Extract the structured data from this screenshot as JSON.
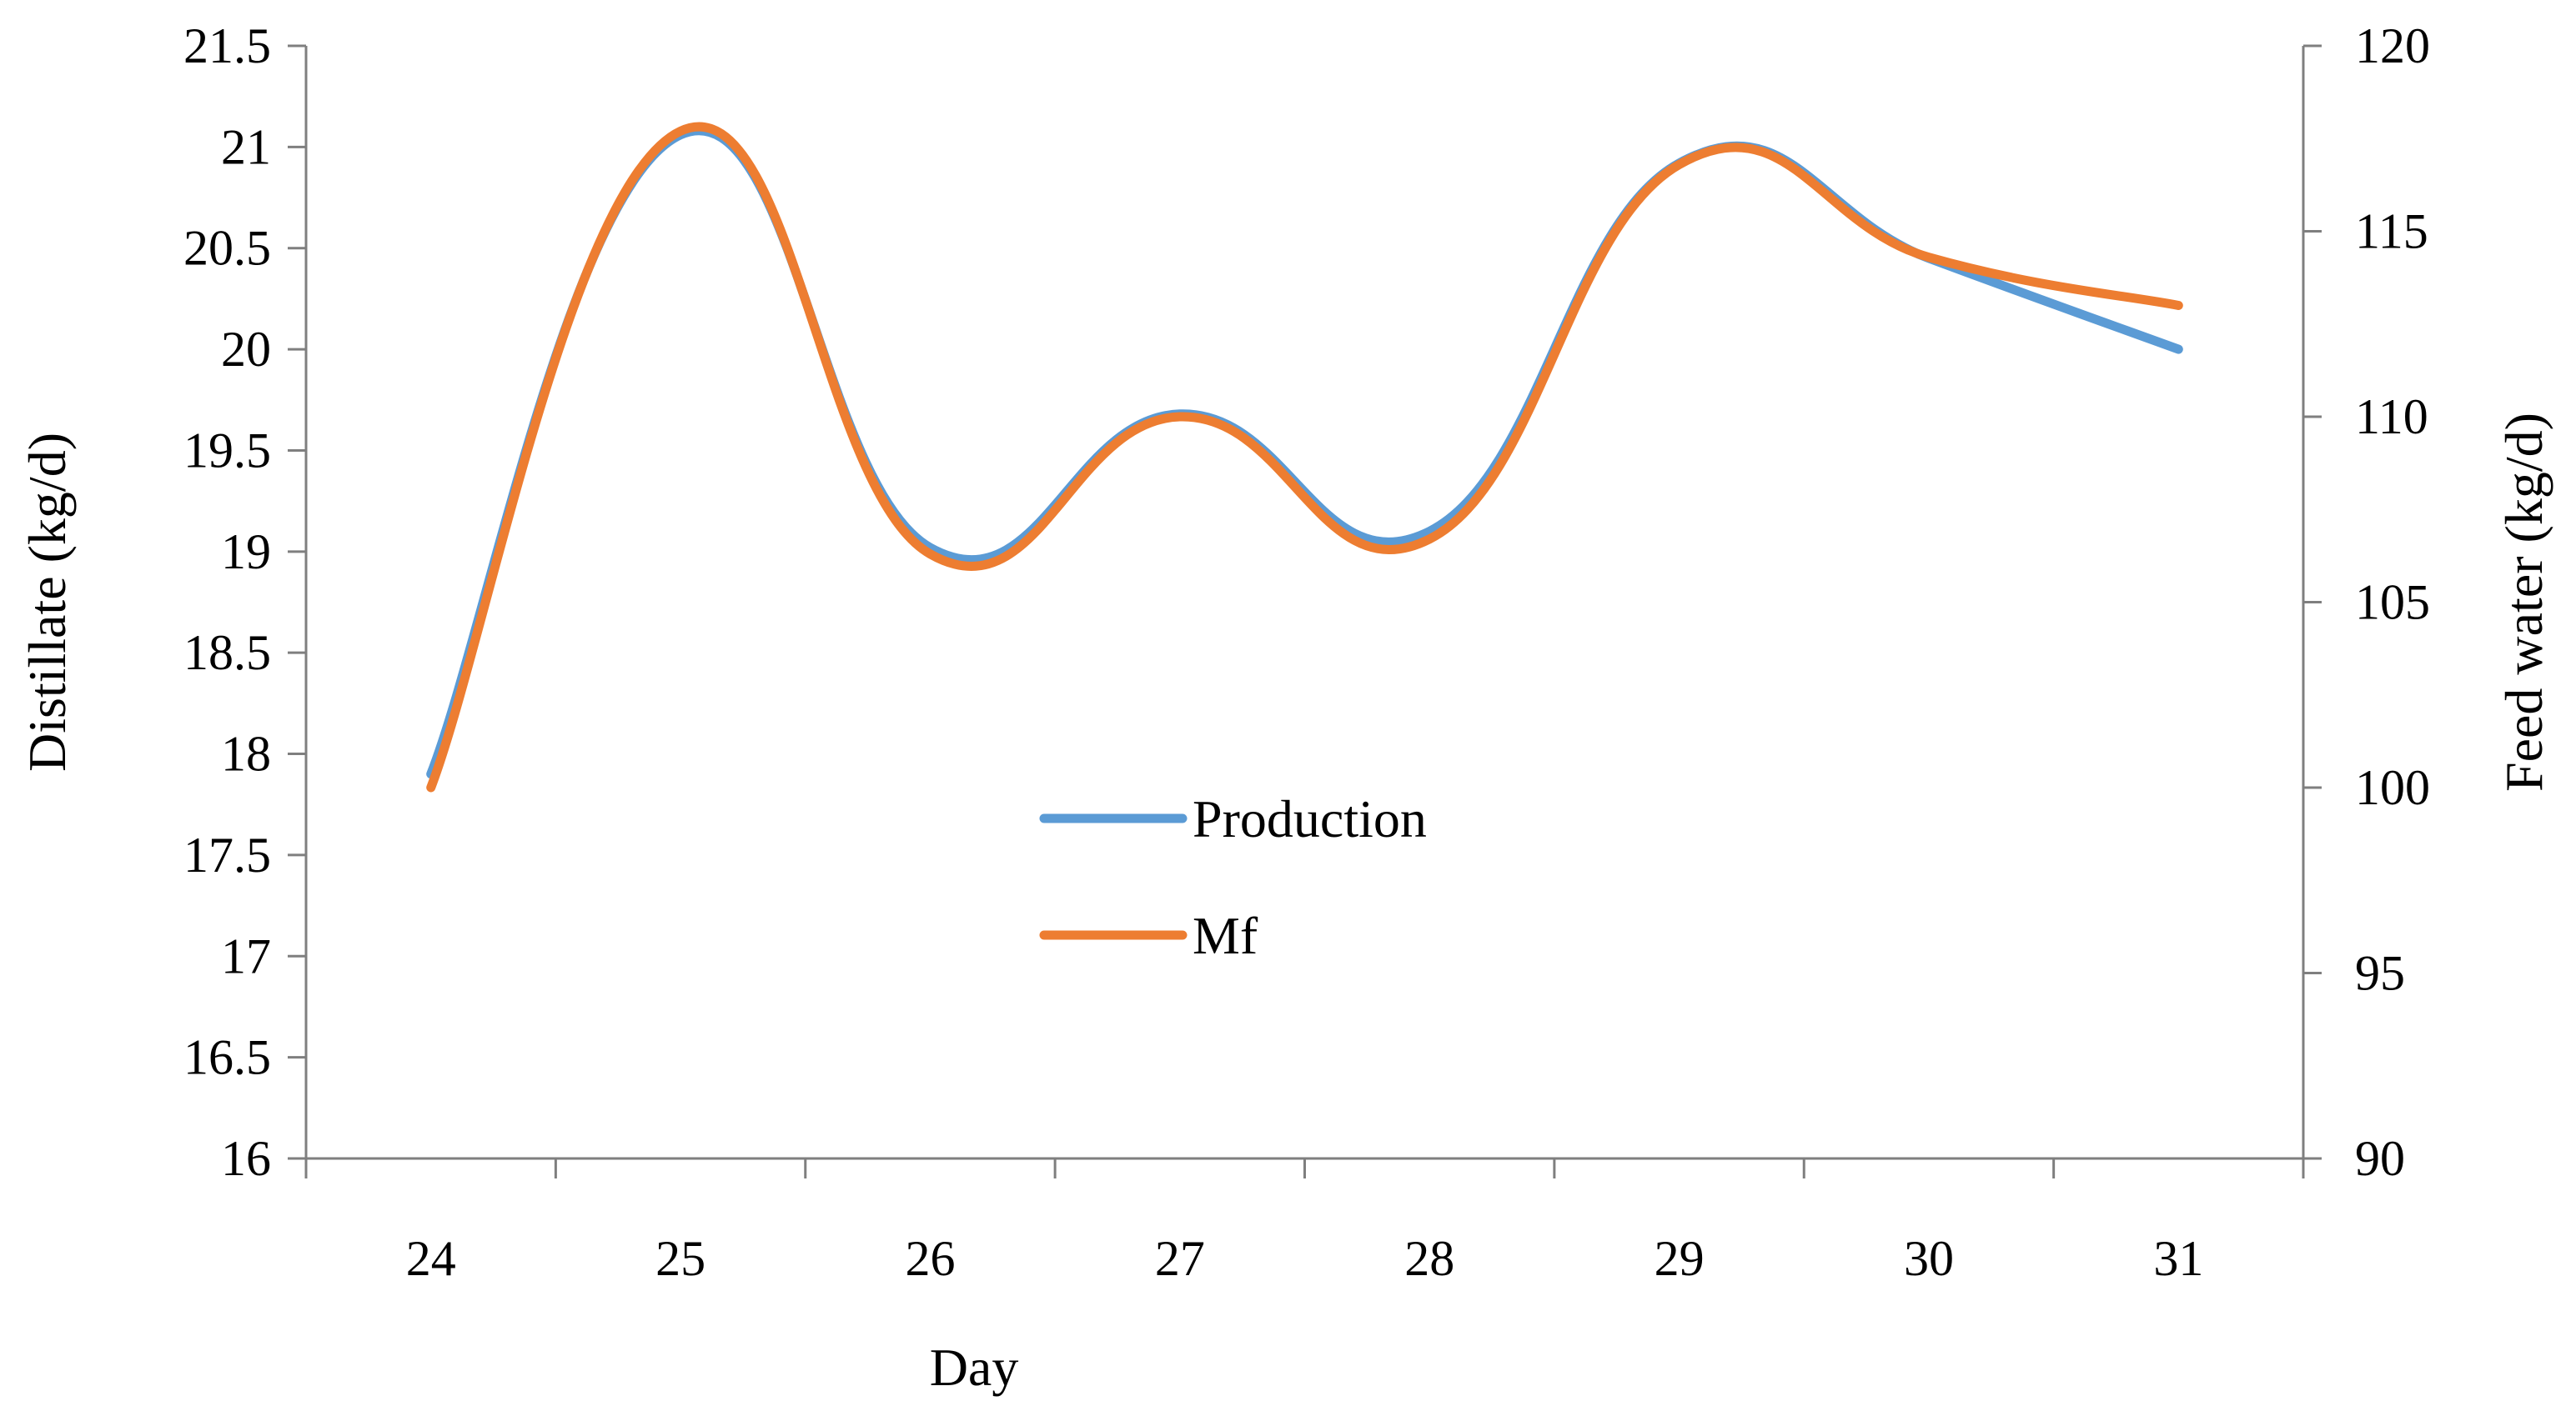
{
  "chart_data": {
    "type": "line",
    "xlabel": "Day",
    "ylabel": "Distillate (kg/d)",
    "y2label": "Feed water (kg/d)",
    "categories": [
      "24",
      "25",
      "26",
      "27",
      "28",
      "29",
      "30",
      "31"
    ],
    "ylim": [
      16,
      21.5
    ],
    "y_ticks": [
      "16",
      "16.5",
      "17",
      "17.5",
      "18",
      "18.5",
      "19",
      "19.5",
      "20",
      "20.5",
      "21",
      "21.5"
    ],
    "y2lim": [
      90,
      120
    ],
    "y2_ticks": [
      "90",
      "95",
      "100",
      "105",
      "110",
      "115",
      "120"
    ],
    "legend_position": "center",
    "series": [
      {
        "name": "Production",
        "axis": "left",
        "color": "#5b9bd5",
        "values": [
          17.9,
          21.06,
          19.02,
          19.68,
          19.1,
          20.92,
          20.45,
          20.0
        ]
      },
      {
        "name": "Mf",
        "axis": "right",
        "color": "#ed7d31",
        "values": [
          100.0,
          117.7,
          106.3,
          110.0,
          106.7,
          116.8,
          114.3,
          113.0
        ]
      }
    ]
  }
}
